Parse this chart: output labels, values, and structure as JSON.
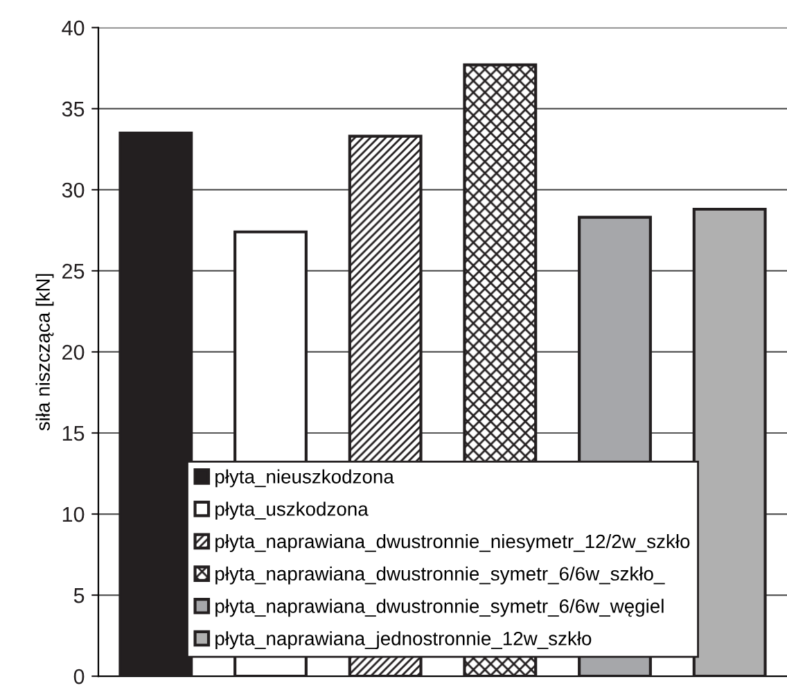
{
  "chart_data": {
    "type": "bar",
    "ylabel": "siła niszcząca [kN]",
    "categories": [
      null,
      null,
      null,
      null,
      null,
      null
    ],
    "series": [
      {
        "name": "płyta_nieuszkodzona",
        "color": "#231f20",
        "values": [
          33.5,
          null,
          null,
          null,
          null,
          null
        ]
      },
      {
        "name": "płyta_uszkodzona",
        "color": "#ffffff",
        "values": [
          null,
          27.4,
          null,
          null,
          null,
          null
        ]
      },
      {
        "name": "płyta_naprawiana_dwustronnie_niesymetr_12/2w_szkło",
        "color": "#231f20",
        "values": [
          null,
          null,
          33.3,
          null,
          null,
          null
        ]
      },
      {
        "name": "płyta_naprawiana_dwustronnie_symetr_6/6w_szkło_",
        "color": "#231f20",
        "values": [
          null,
          null,
          null,
          37.7,
          null,
          null
        ]
      },
      {
        "name": "płyta_naprawiana_dwustronnie_symetr_6/6w_węgiel",
        "color": "#a6a7aa",
        "values": [
          null,
          null,
          null,
          null,
          28.3,
          null
        ]
      },
      {
        "name": "płyta_naprawiana_jednostronnie_12w_szkło",
        "color": "#b0b0b0",
        "values": [
          null,
          null,
          null,
          null,
          null,
          28.8
        ]
      }
    ],
    "ylim": [
      0,
      40
    ],
    "yticks": [
      0,
      5,
      10,
      15,
      20,
      25,
      30,
      35,
      40
    ],
    "grid": "y",
    "legend": "bottom",
    "tick_labels": "y"
  }
}
